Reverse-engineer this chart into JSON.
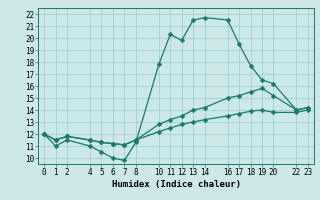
{
  "title": "",
  "xlabel": "Humidex (Indice chaleur)",
  "ylabel": "",
  "bg_color": "#cce8e8",
  "grid_color": "#99cccc",
  "line_color": "#1a7a6a",
  "xlim": [
    -0.5,
    23.5
  ],
  "ylim": [
    9.5,
    22.5
  ],
  "yticks": [
    10,
    11,
    12,
    13,
    14,
    15,
    16,
    17,
    18,
    19,
    20,
    21,
    22
  ],
  "xticks": [
    0,
    1,
    2,
    4,
    5,
    6,
    7,
    8,
    10,
    11,
    12,
    13,
    14,
    16,
    17,
    18,
    19,
    20,
    22,
    23
  ],
  "xtick_labels": [
    "0",
    "1",
    "2",
    "4",
    "5",
    "6",
    "7",
    "8",
    "10",
    "11",
    "12",
    "13",
    "14",
    "16",
    "17",
    "18",
    "19",
    "20",
    "22",
    "23"
  ],
  "line1_x": [
    0,
    1,
    2,
    4,
    5,
    6,
    7,
    8,
    10,
    11,
    12,
    13,
    14,
    16,
    17,
    18,
    19,
    20,
    22,
    23
  ],
  "line1_y": [
    12.0,
    11.0,
    11.5,
    11.0,
    10.5,
    10.0,
    9.8,
    11.3,
    17.8,
    20.3,
    19.8,
    21.5,
    21.7,
    21.5,
    19.5,
    17.7,
    16.5,
    16.2,
    14.0,
    14.2
  ],
  "line2_x": [
    0,
    1,
    2,
    4,
    5,
    6,
    7,
    8,
    10,
    11,
    12,
    13,
    14,
    16,
    17,
    18,
    19,
    20,
    22,
    23
  ],
  "line2_y": [
    12.0,
    11.5,
    11.8,
    11.5,
    11.3,
    11.2,
    11.1,
    11.5,
    12.8,
    13.2,
    13.5,
    14.0,
    14.2,
    15.0,
    15.2,
    15.5,
    15.8,
    15.2,
    14.0,
    14.2
  ],
  "line3_x": [
    0,
    1,
    2,
    4,
    5,
    6,
    7,
    8,
    10,
    11,
    12,
    13,
    14,
    16,
    17,
    18,
    19,
    20,
    22,
    23
  ],
  "line3_y": [
    12.0,
    11.5,
    11.8,
    11.5,
    11.3,
    11.2,
    11.1,
    11.5,
    12.2,
    12.5,
    12.8,
    13.0,
    13.2,
    13.5,
    13.7,
    13.9,
    14.0,
    13.8,
    13.8,
    14.0
  ],
  "marker": "D",
  "markersize": 2.5,
  "linewidth": 0.9,
  "fontsize_ticks": 5.5,
  "fontsize_label": 6.5
}
